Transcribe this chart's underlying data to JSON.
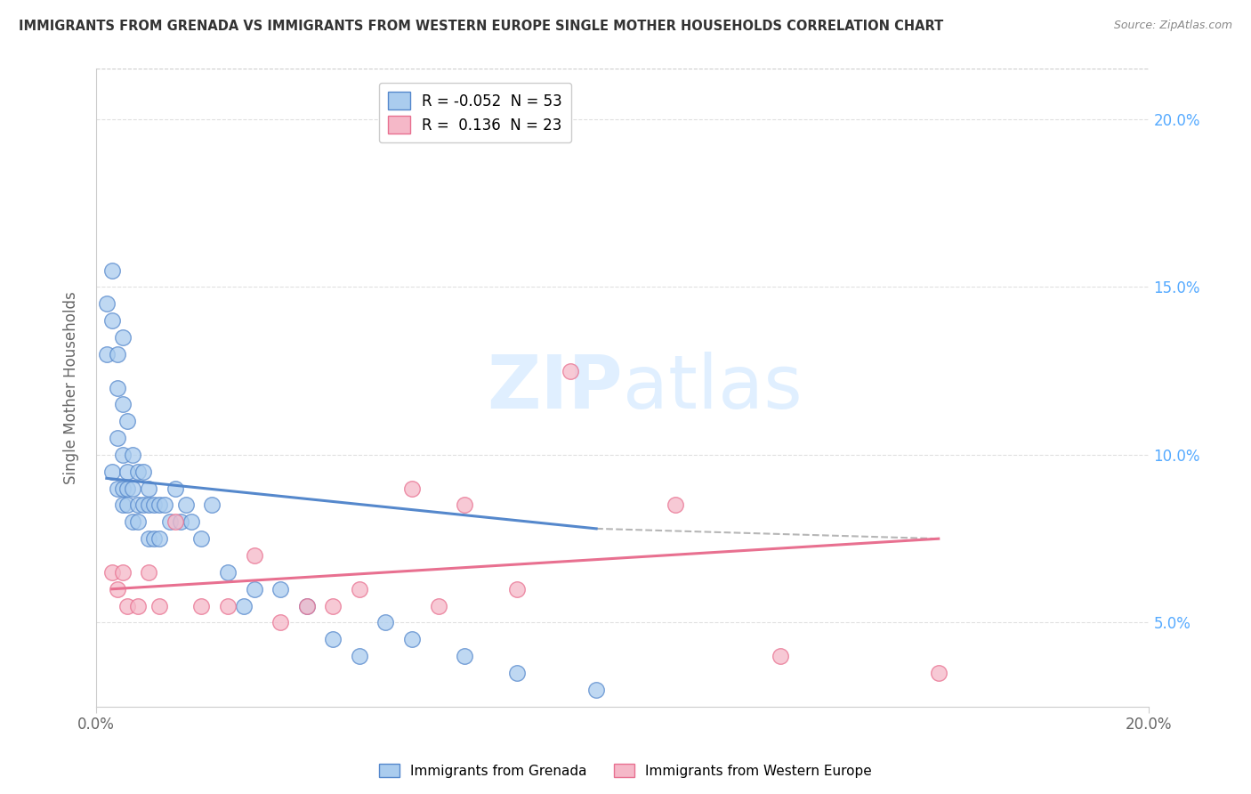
{
  "title": "IMMIGRANTS FROM GRENADA VS IMMIGRANTS FROM WESTERN EUROPE SINGLE MOTHER HOUSEHOLDS CORRELATION CHART",
  "source": "Source: ZipAtlas.com",
  "ylabel": "Single Mother Households",
  "ytick_labels": [
    "5.0%",
    "10.0%",
    "15.0%",
    "20.0%"
  ],
  "ytick_values": [
    0.05,
    0.1,
    0.15,
    0.2
  ],
  "xlim": [
    0.0,
    0.2
  ],
  "ylim": [
    0.025,
    0.215
  ],
  "blue_scatter_x": [
    0.002,
    0.002,
    0.003,
    0.003,
    0.003,
    0.004,
    0.004,
    0.004,
    0.004,
    0.005,
    0.005,
    0.005,
    0.005,
    0.005,
    0.006,
    0.006,
    0.006,
    0.006,
    0.007,
    0.007,
    0.007,
    0.008,
    0.008,
    0.008,
    0.009,
    0.009,
    0.01,
    0.01,
    0.01,
    0.011,
    0.011,
    0.012,
    0.012,
    0.013,
    0.014,
    0.015,
    0.016,
    0.017,
    0.018,
    0.02,
    0.022,
    0.025,
    0.028,
    0.03,
    0.035,
    0.04,
    0.045,
    0.05,
    0.055,
    0.06,
    0.07,
    0.08,
    0.095
  ],
  "blue_scatter_y": [
    0.145,
    0.13,
    0.155,
    0.14,
    0.095,
    0.13,
    0.12,
    0.105,
    0.09,
    0.135,
    0.115,
    0.1,
    0.09,
    0.085,
    0.11,
    0.095,
    0.09,
    0.085,
    0.1,
    0.09,
    0.08,
    0.095,
    0.085,
    0.08,
    0.095,
    0.085,
    0.09,
    0.085,
    0.075,
    0.085,
    0.075,
    0.085,
    0.075,
    0.085,
    0.08,
    0.09,
    0.08,
    0.085,
    0.08,
    0.075,
    0.085,
    0.065,
    0.055,
    0.06,
    0.06,
    0.055,
    0.045,
    0.04,
    0.05,
    0.045,
    0.04,
    0.035,
    0.03
  ],
  "pink_scatter_x": [
    0.003,
    0.004,
    0.005,
    0.006,
    0.008,
    0.01,
    0.012,
    0.015,
    0.02,
    0.025,
    0.03,
    0.035,
    0.04,
    0.045,
    0.05,
    0.06,
    0.065,
    0.07,
    0.08,
    0.09,
    0.11,
    0.13,
    0.16
  ],
  "pink_scatter_y": [
    0.065,
    0.06,
    0.065,
    0.055,
    0.055,
    0.065,
    0.055,
    0.08,
    0.055,
    0.055,
    0.07,
    0.05,
    0.055,
    0.055,
    0.06,
    0.09,
    0.055,
    0.085,
    0.06,
    0.125,
    0.085,
    0.04,
    0.035
  ],
  "blue_line_x": [
    0.002,
    0.095
  ],
  "blue_line_y": [
    0.093,
    0.078
  ],
  "pink_line_x": [
    0.003,
    0.16
  ],
  "pink_line_y": [
    0.06,
    0.075
  ],
  "dash_line_x": [
    0.095,
    0.16
  ],
  "dash_line_y": [
    0.078,
    0.075
  ],
  "blue_color": "#5588cc",
  "pink_color": "#e87090",
  "blue_scatter_color": "#aaccee",
  "pink_scatter_color": "#f5b8c8",
  "background_color": "#ffffff",
  "watermark_part1": "ZIP",
  "watermark_part2": "atlas",
  "grid_color": "#dddddd",
  "legend_blue_label_r": "R = -0.052",
  "legend_blue_label_n": "N = 53",
  "legend_pink_label_r": "R =  0.136",
  "legend_pink_label_n": "N = 23"
}
